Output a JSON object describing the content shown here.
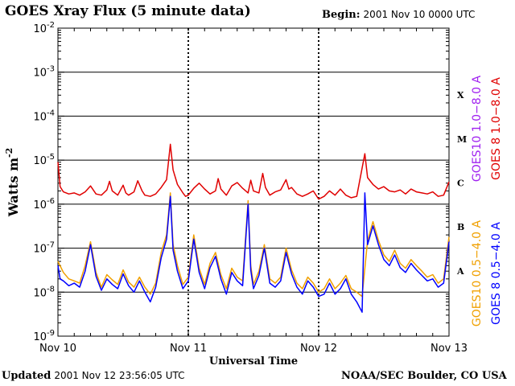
{
  "header": {
    "title": "GOES Xray Flux (5 minute data)",
    "begin_label": "Begin:",
    "begin_value": "2001 Nov 10 0000 UTC"
  },
  "footer": {
    "updated_label": "Updated",
    "updated_value": "2001 Nov 12 23:56:05 UTC",
    "credit": "NOAA/SEC Boulder, CO USA"
  },
  "colors": {
    "goes10_long": "#a020f0",
    "goes8_long": "#e00000",
    "goes10_short": "#f0a000",
    "goes8_short": "#0000ff",
    "axis": "#000000"
  },
  "chart_data": {
    "type": "line",
    "title": "GOES Xray Flux (5 minute data)",
    "xlabel": "Universal Time",
    "ylabel": "Watts m",
    "ylabel_sup": "-2",
    "yscale": "log",
    "ylim": [
      1e-09,
      0.01
    ],
    "xlim": [
      0,
      72
    ],
    "x_units": "hours since 2001 Nov 10 0000 UTC",
    "x_ticks": [
      {
        "x": 0,
        "label": "Nov 10"
      },
      {
        "x": 24,
        "label": "Nov 11"
      },
      {
        "x": 48,
        "label": "Nov 12"
      },
      {
        "x": 72,
        "label": "Nov 13"
      }
    ],
    "y_ticks": [
      {
        "exp": -9,
        "base": "10",
        "sup": "-9"
      },
      {
        "exp": -8,
        "base": "10",
        "sup": "-8"
      },
      {
        "exp": -7,
        "base": "10",
        "sup": "-7"
      },
      {
        "exp": -6,
        "base": "10",
        "sup": "-6"
      },
      {
        "exp": -5,
        "base": "10",
        "sup": "-5"
      },
      {
        "exp": -4,
        "base": "10",
        "sup": "-4"
      },
      {
        "exp": -3,
        "base": "10",
        "sup": "-3"
      },
      {
        "exp": -2,
        "base": "10",
        "sup": "-2"
      }
    ],
    "flare_classes": [
      {
        "label": "A",
        "exp": -7.5
      },
      {
        "label": "B",
        "exp": -6.5
      },
      {
        "label": "C",
        "exp": -5.5
      },
      {
        "label": "M",
        "exp": -4.5
      },
      {
        "label": "X",
        "exp": -3.5
      }
    ],
    "grid": "horizontal decade lines at 1e-8 to 1e-3",
    "legend": [
      {
        "label": "GOES10 1.0−8.0 A",
        "color": "#a020f0"
      },
      {
        "label": "GOES 8 1.0−8.0 A",
        "color": "#e00000"
      },
      {
        "label": "GOES10 0.5−4.0 A",
        "color": "#f0a000"
      },
      {
        "label": "GOES 8 0.5−4.0 A",
        "color": "#0000ff"
      }
    ],
    "series": [
      {
        "name": "GOES 8 1.0−8.0 A",
        "color": "#e00000",
        "points": [
          [
            0,
            9e-06
          ],
          [
            0.4,
            2.5e-06
          ],
          [
            1,
            1.9e-06
          ],
          [
            2,
            1.7e-06
          ],
          [
            3,
            1.8e-06
          ],
          [
            4,
            1.6e-06
          ],
          [
            5,
            1.9e-06
          ],
          [
            6,
            2.6e-06
          ],
          [
            7,
            1.7e-06
          ],
          [
            8,
            1.6e-06
          ],
          [
            9,
            2.1e-06
          ],
          [
            9.5,
            3.3e-06
          ],
          [
            10,
            2e-06
          ],
          [
            11,
            1.6e-06
          ],
          [
            12,
            2.7e-06
          ],
          [
            12.5,
            1.8e-06
          ],
          [
            13,
            1.6e-06
          ],
          [
            14,
            1.9e-06
          ],
          [
            14.7,
            3.4e-06
          ],
          [
            15.5,
            2e-06
          ],
          [
            16,
            1.6e-06
          ],
          [
            17,
            1.5e-06
          ],
          [
            18,
            1.7e-06
          ],
          [
            19,
            2.4e-06
          ],
          [
            20,
            3.6e-06
          ],
          [
            20.7,
            2.3e-05
          ],
          [
            21.2,
            6e-06
          ],
          [
            22,
            2.8e-06
          ],
          [
            23,
            1.8e-06
          ],
          [
            23.5,
            1.5e-06
          ],
          [
            24,
            1.6e-06
          ],
          [
            25,
            2.3e-06
          ],
          [
            26,
            3e-06
          ],
          [
            27,
            2.2e-06
          ],
          [
            28,
            1.7e-06
          ],
          [
            29,
            2e-06
          ],
          [
            29.5,
            3.8e-06
          ],
          [
            30,
            2.2e-06
          ],
          [
            31,
            1.6e-06
          ],
          [
            32,
            2.6e-06
          ],
          [
            33,
            3.1e-06
          ],
          [
            34,
            2.3e-06
          ],
          [
            35,
            1.8e-06
          ],
          [
            35.5,
            3.5e-06
          ],
          [
            36,
            2e-06
          ],
          [
            37,
            1.8e-06
          ],
          [
            37.7,
            5e-06
          ],
          [
            38.2,
            2.4e-06
          ],
          [
            39,
            1.6e-06
          ],
          [
            40,
            1.9e-06
          ],
          [
            41,
            2.1e-06
          ],
          [
            42,
            3.6e-06
          ],
          [
            42.5,
            2.2e-06
          ],
          [
            43,
            2.4e-06
          ],
          [
            44,
            1.7e-06
          ],
          [
            45,
            1.5e-06
          ],
          [
            46,
            1.7e-06
          ],
          [
            47,
            2e-06
          ],
          [
            48,
            1.3e-06
          ],
          [
            49,
            1.5e-06
          ],
          [
            50,
            2e-06
          ],
          [
            51,
            1.6e-06
          ],
          [
            52,
            2.2e-06
          ],
          [
            53,
            1.6e-06
          ],
          [
            54,
            1.4e-06
          ],
          [
            55,
            1.5e-06
          ],
          [
            56.5,
            1.4e-05
          ],
          [
            57,
            4e-06
          ],
          [
            58,
            2.8e-06
          ],
          [
            59,
            2.2e-06
          ],
          [
            60,
            2.5e-06
          ],
          [
            61,
            2e-06
          ],
          [
            62,
            1.9e-06
          ],
          [
            63,
            2.1e-06
          ],
          [
            64,
            1.7e-06
          ],
          [
            65,
            2.2e-06
          ],
          [
            66,
            1.9e-06
          ],
          [
            67,
            1.8e-06
          ],
          [
            68,
            1.7e-06
          ],
          [
            69,
            1.9e-06
          ],
          [
            70,
            1.5e-06
          ],
          [
            71,
            1.6e-06
          ],
          [
            72,
            3.2e-06
          ]
        ]
      },
      {
        "name": "GOES10 0.5−4.0 A",
        "color": "#f0a000",
        "points": [
          [
            0,
            5e-08
          ],
          [
            1,
            2.8e-08
          ],
          [
            2,
            2e-08
          ],
          [
            3,
            1.8e-08
          ],
          [
            4,
            1.6e-08
          ],
          [
            5,
            4e-08
          ],
          [
            6,
            1.4e-07
          ],
          [
            7,
            2.8e-08
          ],
          [
            8,
            1.3e-08
          ],
          [
            9,
            2.5e-08
          ],
          [
            10,
            1.9e-08
          ],
          [
            11,
            1.5e-08
          ],
          [
            12,
            3.2e-08
          ],
          [
            13,
            1.7e-08
          ],
          [
            14,
            1.3e-08
          ],
          [
            15,
            2.2e-08
          ],
          [
            16,
            1.3e-08
          ],
          [
            17,
            9e-09
          ],
          [
            18,
            1.6e-08
          ],
          [
            19,
            8e-08
          ],
          [
            20,
            2e-07
          ],
          [
            20.7,
            1.8e-06
          ],
          [
            21.2,
            1.2e-07
          ],
          [
            22,
            4e-08
          ],
          [
            23,
            1.5e-08
          ],
          [
            24,
            2.2e-08
          ],
          [
            25,
            2e-07
          ],
          [
            26,
            3.5e-08
          ],
          [
            27,
            1.5e-08
          ],
          [
            28,
            4.5e-08
          ],
          [
            29,
            8e-08
          ],
          [
            30,
            2.5e-08
          ],
          [
            31,
            1.2e-08
          ],
          [
            32,
            3.5e-08
          ],
          [
            33,
            2.2e-08
          ],
          [
            34,
            1.8e-08
          ],
          [
            35,
            1.2e-06
          ],
          [
            35.5,
            4e-08
          ],
          [
            36,
            1.5e-08
          ],
          [
            37,
            3e-08
          ],
          [
            38,
            1.2e-07
          ],
          [
            39,
            2e-08
          ],
          [
            40,
            1.6e-08
          ],
          [
            41,
            2.2e-08
          ],
          [
            42,
            1e-07
          ],
          [
            43,
            3.2e-08
          ],
          [
            44,
            1.6e-08
          ],
          [
            45,
            1.2e-08
          ],
          [
            46,
            2.2e-08
          ],
          [
            47,
            1.6e-08
          ],
          [
            48,
            1e-08
          ],
          [
            49,
            1.2e-08
          ],
          [
            50,
            2e-08
          ],
          [
            51,
            1.2e-08
          ],
          [
            52,
            1.6e-08
          ],
          [
            53,
            2.4e-08
          ],
          [
            54,
            1.2e-08
          ],
          [
            55,
            1e-08
          ],
          [
            56,
            8e-09
          ],
          [
            57,
            1.5e-07
          ],
          [
            58,
            4e-07
          ],
          [
            59,
            1.5e-07
          ],
          [
            60,
            7e-08
          ],
          [
            61,
            5e-08
          ],
          [
            62,
            9e-08
          ],
          [
            63,
            4.5e-08
          ],
          [
            64,
            3.5e-08
          ],
          [
            65,
            5.5e-08
          ],
          [
            66,
            4e-08
          ],
          [
            67,
            3e-08
          ],
          [
            68,
            2.2e-08
          ],
          [
            69,
            2.5e-08
          ],
          [
            70,
            1.6e-08
          ],
          [
            71,
            2e-08
          ],
          [
            72,
            1.8e-07
          ]
        ]
      },
      {
        "name": "GOES 8 0.5−4.0 A",
        "color": "#0000ff",
        "points": [
          [
            0,
            4e-08
          ],
          [
            0.4,
            2e-08
          ],
          [
            1,
            1.8e-08
          ],
          [
            2,
            1.4e-08
          ],
          [
            3,
            1.6e-08
          ],
          [
            4,
            1.3e-08
          ],
          [
            5,
            3e-08
          ],
          [
            6,
            1.2e-07
          ],
          [
            7,
            2.3e-08
          ],
          [
            8,
            1.1e-08
          ],
          [
            9,
            2e-08
          ],
          [
            10,
            1.5e-08
          ],
          [
            11,
            1.2e-08
          ],
          [
            12,
            2.6e-08
          ],
          [
            13,
            1.4e-08
          ],
          [
            14,
            1e-08
          ],
          [
            15,
            1.8e-08
          ],
          [
            16,
            1e-08
          ],
          [
            17,
            6e-09
          ],
          [
            18,
            1.3e-08
          ],
          [
            19,
            6e-08
          ],
          [
            20,
            1.6e-07
          ],
          [
            20.7,
            1.5e-06
          ],
          [
            21.2,
            9e-08
          ],
          [
            22,
            3e-08
          ],
          [
            23,
            1.2e-08
          ],
          [
            24,
            1.8e-08
          ],
          [
            25,
            1.6e-07
          ],
          [
            26,
            2.8e-08
          ],
          [
            27,
            1.2e-08
          ],
          [
            28,
            3.6e-08
          ],
          [
            29,
            6.5e-08
          ],
          [
            30,
            2e-08
          ],
          [
            31,
            9e-09
          ],
          [
            32,
            2.8e-08
          ],
          [
            33,
            1.8e-08
          ],
          [
            34,
            1.4e-08
          ],
          [
            35,
            1e-06
          ],
          [
            35.5,
            3.2e-08
          ],
          [
            36,
            1.2e-08
          ],
          [
            37,
            2.4e-08
          ],
          [
            38,
            1e-07
          ],
          [
            39,
            1.6e-08
          ],
          [
            40,
            1.3e-08
          ],
          [
            41,
            1.8e-08
          ],
          [
            42,
            8e-08
          ],
          [
            43,
            2.6e-08
          ],
          [
            44,
            1.3e-08
          ],
          [
            45,
            9e-09
          ],
          [
            46,
            1.8e-08
          ],
          [
            47,
            1.3e-08
          ],
          [
            48,
            8e-09
          ],
          [
            49,
            9e-09
          ],
          [
            50,
            1.6e-08
          ],
          [
            51,
            9e-09
          ],
          [
            52,
            1.2e-08
          ],
          [
            53,
            2e-08
          ],
          [
            54,
            9e-09
          ],
          [
            55,
            6e-09
          ],
          [
            56,
            3.5e-09
          ],
          [
            56.5,
            1.8e-06
          ],
          [
            57,
            1.2e-07
          ],
          [
            58,
            3.2e-07
          ],
          [
            59,
            1.2e-07
          ],
          [
            60,
            5.5e-08
          ],
          [
            61,
            4e-08
          ],
          [
            62,
            7e-08
          ],
          [
            63,
            3.6e-08
          ],
          [
            64,
            2.8e-08
          ],
          [
            65,
            4.5e-08
          ],
          [
            66,
            3.2e-08
          ],
          [
            67,
            2.4e-08
          ],
          [
            68,
            1.8e-08
          ],
          [
            69,
            2e-08
          ],
          [
            70,
            1.3e-08
          ],
          [
            71,
            1.6e-08
          ],
          [
            72,
            1.4e-07
          ]
        ]
      }
    ]
  }
}
